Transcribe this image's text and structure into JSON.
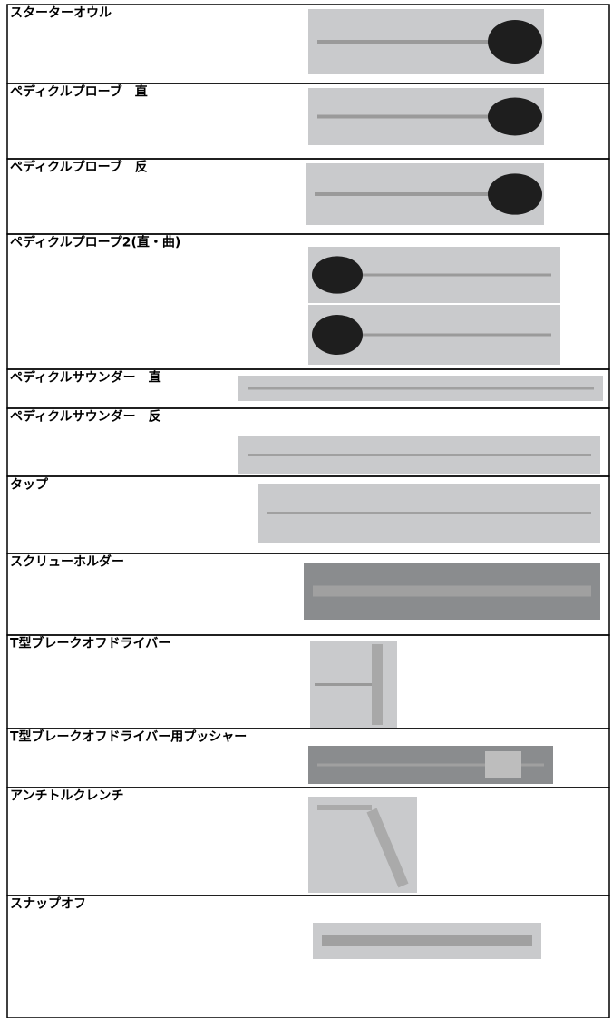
{
  "table": {
    "rows": [
      [
        "スターターオウル"
      ],
      [
        "ペディクルプローブ　直"
      ],
      [
        "ペディクルプローブ　反"
      ],
      [
        "ペディクルプロープ2(直・曲)"
      ],
      [
        "ペディクルサウンダー　直"
      ],
      [
        "ペディクルサウンダー　反"
      ],
      [
        "タップ"
      ],
      [
        "スクリューホルダー"
      ],
      [
        "T型ブレークオフドライバー"
      ],
      [
        "T型ブレークオフドライバー用プッシャー"
      ],
      [
        "アンチトルクレンチ"
      ],
      [
        "スナップオフ"
      ]
    ]
  }
}
